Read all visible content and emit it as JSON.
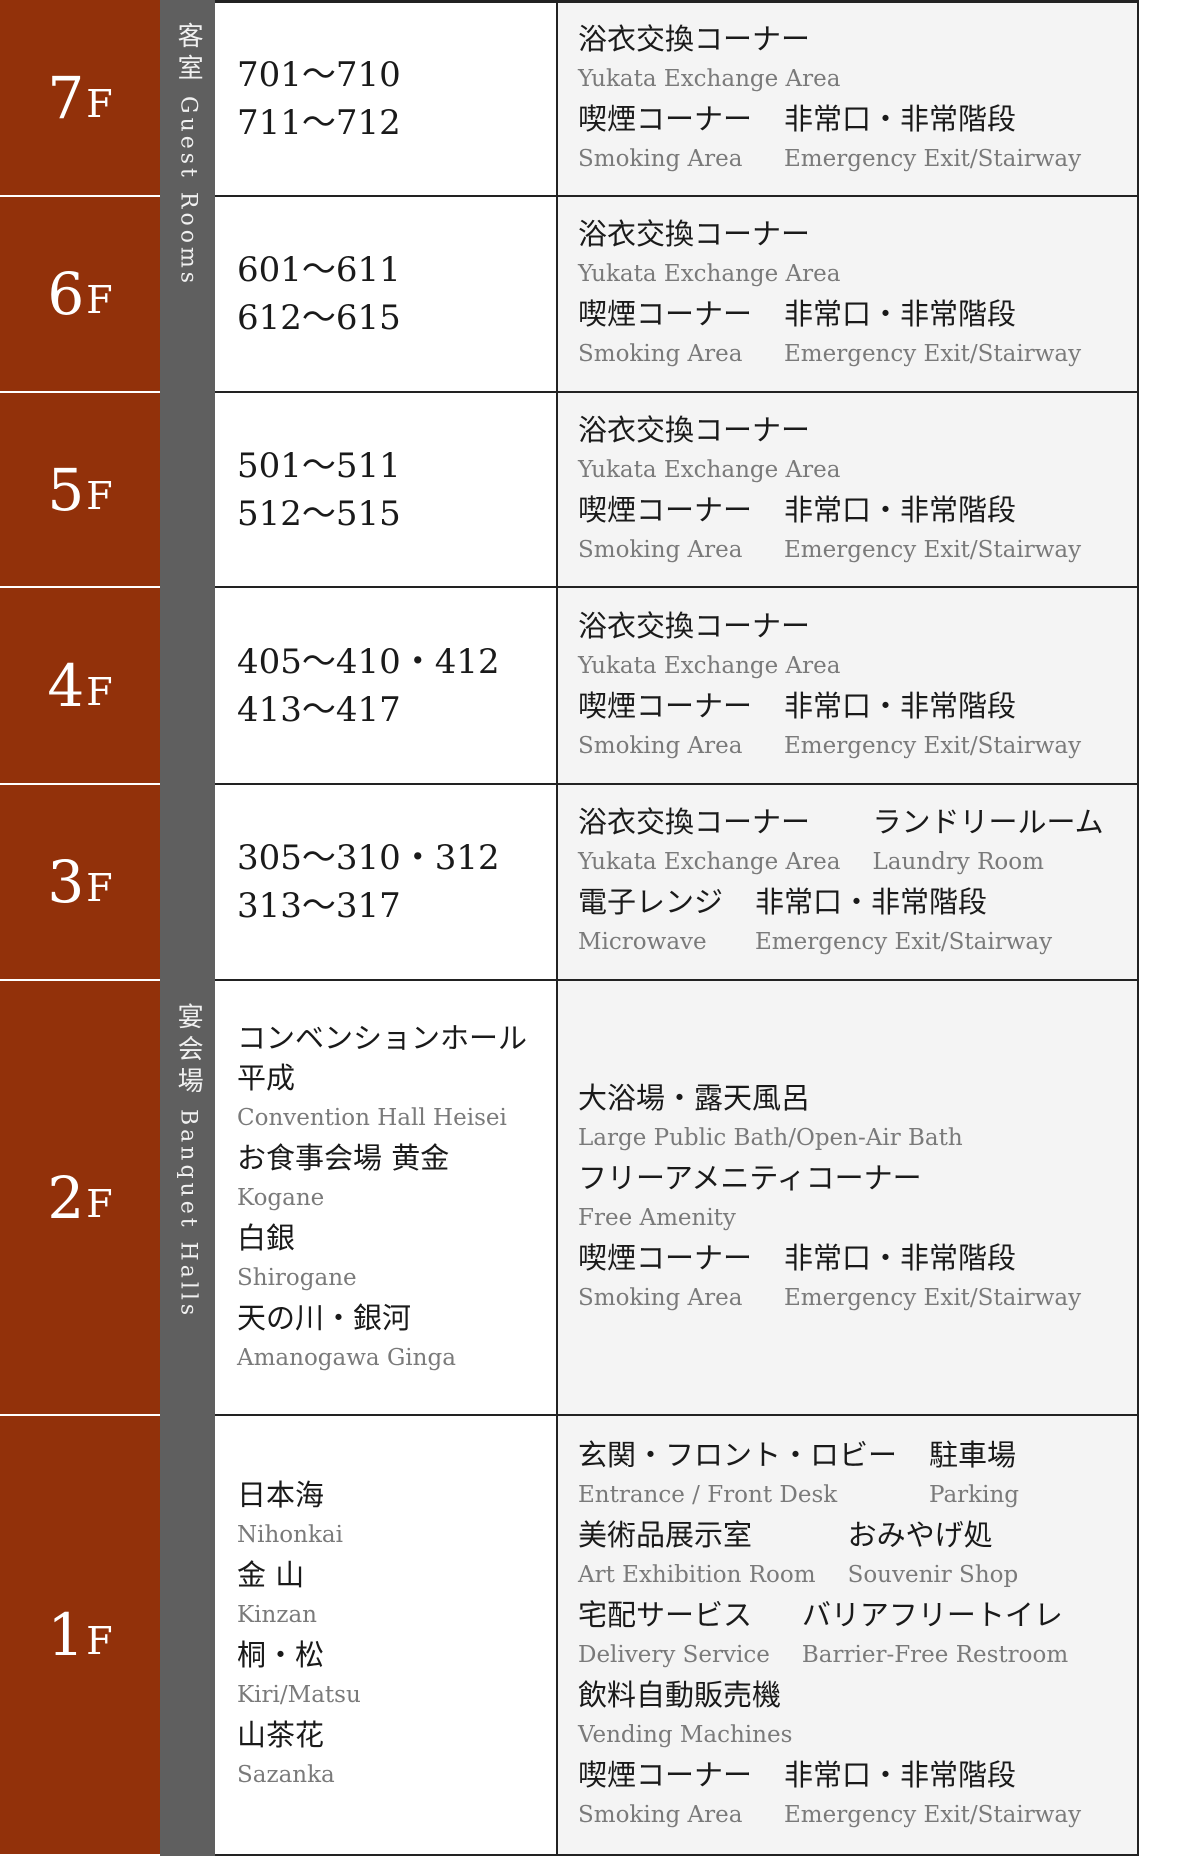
{
  "sections": [
    {
      "ja": "客室",
      "en": "Guest Rooms"
    },
    {
      "ja": "宴会場",
      "en": "Banquet Halls"
    }
  ],
  "colors": {
    "floor": "#92310a",
    "band": "#5f5f5f",
    "facility_bg": "#f4f4f4",
    "border": "#222222"
  },
  "floors": [
    {
      "number": "7",
      "unit": "F",
      "rooms": [
        {
          "num": "701〜710"
        },
        {
          "num": "711〜712"
        }
      ],
      "facilities": [
        [
          {
            "ja": "浴衣交換コーナー",
            "en": "Yukata Exchange Area"
          }
        ],
        [
          {
            "ja": "喫煙コーナー",
            "en": "Smoking Area"
          },
          {
            "ja": "非常口・非常階段",
            "en": "Emergency Exit/Stairway"
          }
        ]
      ]
    },
    {
      "number": "6",
      "unit": "F",
      "rooms": [
        {
          "num": "601〜611"
        },
        {
          "num": "612〜615"
        }
      ],
      "facilities": [
        [
          {
            "ja": "浴衣交換コーナー",
            "en": "Yukata Exchange Area"
          }
        ],
        [
          {
            "ja": "喫煙コーナー",
            "en": "Smoking Area"
          },
          {
            "ja": "非常口・非常階段",
            "en": "Emergency Exit/Stairway"
          }
        ]
      ]
    },
    {
      "number": "5",
      "unit": "F",
      "rooms": [
        {
          "num": "501〜511"
        },
        {
          "num": "512〜515"
        }
      ],
      "facilities": [
        [
          {
            "ja": "浴衣交換コーナー",
            "en": "Yukata Exchange Area"
          }
        ],
        [
          {
            "ja": "喫煙コーナー",
            "en": "Smoking Area"
          },
          {
            "ja": "非常口・非常階段",
            "en": "Emergency Exit/Stairway"
          }
        ]
      ]
    },
    {
      "number": "4",
      "unit": "F",
      "rooms": [
        {
          "num": "405〜410・412"
        },
        {
          "num": "413〜417"
        }
      ],
      "facilities": [
        [
          {
            "ja": "浴衣交換コーナー",
            "en": "Yukata Exchange Area"
          }
        ],
        [
          {
            "ja": "喫煙コーナー",
            "en": "Smoking Area"
          },
          {
            "ja": "非常口・非常階段",
            "en": "Emergency Exit/Stairway"
          }
        ]
      ]
    },
    {
      "number": "3",
      "unit": "F",
      "rooms": [
        {
          "num": "305〜310・312"
        },
        {
          "num": "313〜317"
        }
      ],
      "facilities": [
        [
          {
            "ja": "浴衣交換コーナー",
            "en": "Yukata Exchange Area"
          },
          {
            "ja": "ランドリールーム",
            "en": "Laundry Room"
          }
        ],
        [
          {
            "ja": "電子レンジ",
            "en": "Microwave"
          },
          {
            "ja": "非常口・非常階段",
            "en": "Emergency Exit/Stairway"
          }
        ]
      ]
    },
    {
      "number": "2",
      "unit": "F",
      "rooms": [
        {
          "ja": "コンベンションホール",
          "ja2": "平成",
          "en": "Convention Hall Heisei"
        },
        {
          "ja": "お食事会場 黄金",
          "en": "Kogane"
        },
        {
          "ja": "白銀",
          "en": "Shirogane"
        },
        {
          "ja": "天の川・銀河",
          "en": "Amanogawa Ginga"
        }
      ],
      "facilities": [
        [
          {
            "ja": "大浴場・露天風呂",
            "en": "Large Public Bath/Open-Air Bath"
          }
        ],
        [
          {
            "ja": "フリーアメニティコーナー",
            "en": "Free Amenity"
          }
        ],
        [
          {
            "ja": "喫煙コーナー",
            "en": "Smoking Area"
          },
          {
            "ja": "非常口・非常階段",
            "en": "Emergency Exit/Stairway"
          }
        ]
      ]
    },
    {
      "number": "1",
      "unit": "F",
      "rooms": [
        {
          "ja": "日本海",
          "en": "Nihonkai"
        },
        {
          "ja": "金 山",
          "en": "Kinzan"
        },
        {
          "ja": "桐・松",
          "en": "Kiri/Matsu"
        },
        {
          "ja": "山茶花",
          "en": "Sazanka"
        }
      ],
      "facilities": [
        [
          {
            "ja": "玄関・フロント・ロビー",
            "en": "Entrance / Front Desk"
          },
          {
            "ja": "駐車場",
            "en": "Parking"
          }
        ],
        [
          {
            "ja": "美術品展示室",
            "en": "Art Exhibition Room"
          },
          {
            "ja": "おみやげ処",
            "en": "Souvenir Shop"
          }
        ],
        [
          {
            "ja": "宅配サービス",
            "en": "Delivery Service"
          },
          {
            "ja": "バリアフリートイレ",
            "en": "Barrier-Free Restroom"
          }
        ],
        [
          {
            "ja": "飲料自動販売機",
            "en": "Vending Machines"
          }
        ],
        [
          {
            "ja": "喫煙コーナー",
            "en": "Smoking Area"
          },
          {
            "ja": "非常口・非常階段",
            "en": "Emergency Exit/Stairway"
          }
        ]
      ]
    }
  ]
}
